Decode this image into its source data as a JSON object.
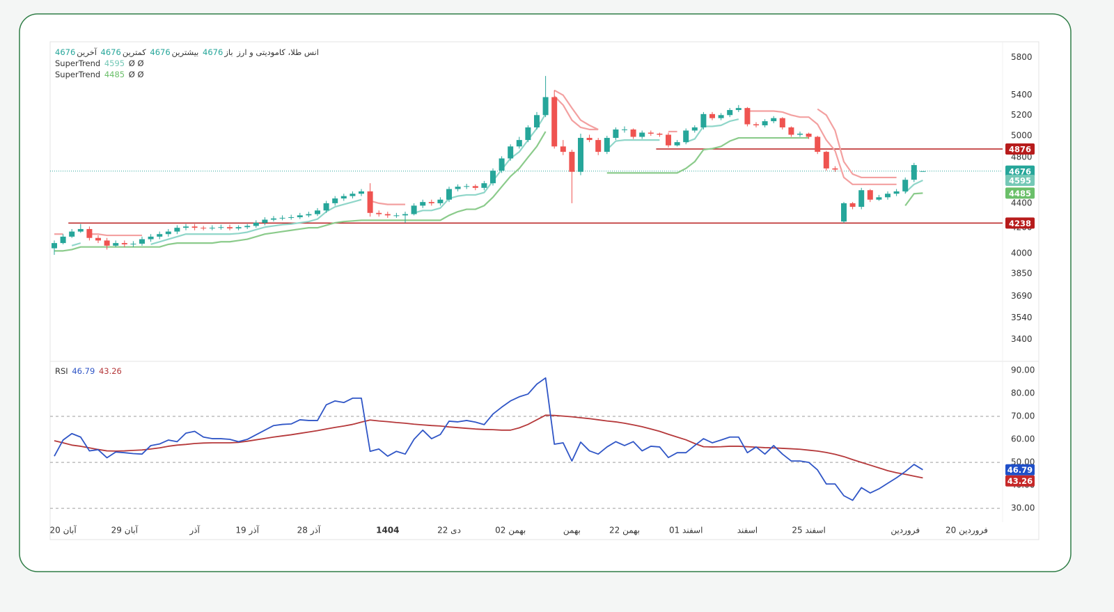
{
  "chart_data": [
    {
      "type": "candlestick",
      "title": "انس طلا، کامودیتی و ارز",
      "legend_labels": {
        "open": "باز",
        "high": "بیشترین",
        "low": "کمترین",
        "close": "آخرین"
      },
      "categories": [
        null,
        "20 آبان",
        null,
        null,
        null,
        null,
        null,
        null,
        "29 آبان",
        null,
        null,
        null,
        null,
        null,
        null,
        null,
        "آذر",
        null,
        null,
        null,
        null,
        null,
        "19 آذر",
        null,
        null,
        null,
        null,
        null,
        null,
        "28 آذر",
        null,
        null,
        null,
        null,
        null,
        null,
        null,
        null,
        "1404",
        null,
        null,
        null,
        null,
        null,
        null,
        "22 دی",
        null,
        null,
        null,
        null,
        null,
        null,
        "02 بهمن",
        null,
        null,
        null,
        null,
        null,
        null,
        "بهمن",
        null,
        null,
        null,
        null,
        null,
        "22 بهمن",
        null,
        null,
        null,
        null,
        null,
        null,
        "01 اسفند",
        null,
        null,
        null,
        null,
        null,
        null,
        "اسفند",
        null,
        null,
        null,
        null,
        null,
        null,
        "25 اسفند",
        null,
        null,
        null,
        null,
        null,
        null,
        null,
        null,
        null,
        null,
        "فروردین",
        null,
        null,
        null,
        null,
        null,
        null,
        "20 فروردین"
      ],
      "bold_category": 38,
      "open": [
        4040,
        4080,
        4130,
        4170,
        4190,
        4120,
        4100,
        4060,
        4080,
        4070,
        4075,
        4110,
        4130,
        4150,
        4170,
        4200,
        4210,
        4200,
        4195,
        4200,
        4205,
        4195,
        4205,
        4215,
        4240,
        4265,
        4275,
        4280,
        4285,
        4300,
        4310,
        4340,
        4400,
        4440,
        4460,
        4480,
        4500,
        4320,
        4310,
        4300,
        4300,
        4310,
        4380,
        4410,
        4400,
        4430,
        4520,
        4540,
        4545,
        4530,
        4570,
        4680,
        4790,
        4900,
        4960,
        5080,
        5200,
        5380,
        4900,
        4850,
        4670,
        4980,
        4960,
        4850,
        4980,
        5060,
        5060,
        4990,
        5030,
        5020,
        5010,
        4910,
        4940,
        5050,
        5080,
        5210,
        5170,
        5200,
        5250,
        5270,
        5110,
        5100,
        5140,
        5170,
        5080,
        5010,
        5020,
        4990,
        4850,
        4700,
        4250,
        4400,
        4370,
        4510,
        4430,
        4450,
        4480,
        4500,
        4600,
        4676,
        null,
        null,
        null,
        null,
        null
      ],
      "high": [
        4100,
        4150,
        4190,
        4230,
        4210,
        4140,
        4120,
        4100,
        4100,
        4095,
        4130,
        4150,
        4170,
        4190,
        4220,
        4230,
        4230,
        4215,
        4220,
        4225,
        4225,
        4220,
        4230,
        4260,
        4285,
        4295,
        4300,
        4305,
        4320,
        4330,
        4360,
        4420,
        4460,
        4480,
        4500,
        4520,
        4570,
        4340,
        4330,
        4320,
        4330,
        4400,
        4430,
        4430,
        4450,
        4540,
        4560,
        4565,
        4560,
        4590,
        4700,
        4810,
        4920,
        4990,
        5100,
        5230,
        5600,
        5450,
        4960,
        4870,
        5020,
        5010,
        4980,
        5000,
        5080,
        5090,
        5070,
        5050,
        5050,
        5030,
        5030,
        4960,
        5070,
        5100,
        5230,
        5230,
        5220,
        5270,
        5300,
        5280,
        5130,
        5160,
        5190,
        5180,
        5090,
        5040,
        5030,
        5000,
        4860,
        4720,
        4410,
        4410,
        4530,
        4520,
        4470,
        4500,
        4520,
        4620,
        4750,
        4676,
        null,
        null,
        null,
        null,
        null
      ],
      "low": [
        3990,
        4070,
        4120,
        4160,
        4100,
        4080,
        4030,
        4050,
        4050,
        4050,
        4060,
        4090,
        4110,
        4130,
        4150,
        4180,
        4180,
        4180,
        4180,
        4185,
        4180,
        4180,
        4190,
        4200,
        4220,
        4250,
        4260,
        4265,
        4270,
        4285,
        4295,
        4320,
        4380,
        4420,
        4440,
        4460,
        4290,
        4290,
        4280,
        4280,
        4240,
        4300,
        4360,
        4380,
        4380,
        4410,
        4500,
        4520,
        4510,
        4510,
        4550,
        4660,
        4770,
        4880,
        4940,
        5060,
        5180,
        4880,
        4820,
        4400,
        4640,
        4940,
        4820,
        4830,
        4960,
        5030,
        4970,
        4970,
        5000,
        4990,
        4890,
        4900,
        4920,
        5030,
        5060,
        5150,
        5150,
        5180,
        5230,
        5090,
        5080,
        5080,
        5120,
        5060,
        4990,
        4990,
        4970,
        4830,
        4680,
        4670,
        4238,
        4350,
        4350,
        4410,
        4420,
        4430,
        4460,
        4480,
        4580,
        4676,
        null,
        null,
        null,
        null,
        null
      ],
      "close": [
        4080,
        4130,
        4170,
        4190,
        4120,
        4100,
        4060,
        4080,
        4070,
        4075,
        4110,
        4130,
        4150,
        4170,
        4200,
        4210,
        4200,
        4195,
        4200,
        4205,
        4195,
        4205,
        4215,
        4240,
        4265,
        4275,
        4280,
        4285,
        4300,
        4310,
        4340,
        4400,
        4440,
        4460,
        4480,
        4500,
        4320,
        4310,
        4300,
        4300,
        4310,
        4380,
        4410,
        4400,
        4430,
        4520,
        4540,
        4545,
        4530,
        4570,
        4680,
        4790,
        4900,
        4960,
        5080,
        5200,
        5380,
        4900,
        4850,
        4670,
        4980,
        4960,
        4850,
        4980,
        5060,
        5060,
        4990,
        5030,
        5020,
        5010,
        4910,
        4940,
        5050,
        5080,
        5210,
        5170,
        5200,
        5250,
        5270,
        5110,
        5100,
        5140,
        5170,
        5080,
        5010,
        5020,
        4990,
        4850,
        4700,
        4690,
        4400,
        4370,
        4510,
        4430,
        4450,
        4480,
        4500,
        4600,
        4730,
        4676,
        null,
        null,
        null,
        null,
        null
      ],
      "up_color": "#26a69a",
      "down_color": "#ef5350",
      "ylim": [
        3265,
        5975
      ],
      "log_scale": true,
      "grid": false,
      "yticks": [
        3400,
        3540,
        3690,
        3850,
        4000,
        4200,
        4400,
        4800,
        5000,
        5200,
        5400,
        5800
      ],
      "overlays": [
        {
          "name": "SuperTrend",
          "extra": "Ø Ø",
          "color": "#8fd6c9",
          "label_color": "#74c8b6",
          "down_color": "#f3a0a0",
          "values": [
            4150,
            4150,
            4060,
            4080,
            4150,
            4150,
            4140,
            4140,
            4140,
            4140,
            4140,
            4070,
            4090,
            4110,
            4130,
            4150,
            4150,
            4150,
            4150,
            4150,
            4150,
            4155,
            4165,
            4185,
            4205,
            4215,
            4225,
            4230,
            4240,
            4250,
            4270,
            4330,
            4370,
            4390,
            4410,
            4430,
            4420,
            4400,
            4390,
            4390,
            4390,
            4320,
            4340,
            4340,
            4360,
            4440,
            4460,
            4470,
            4470,
            4490,
            4590,
            4690,
            4790,
            4850,
            4960,
            5070,
            5210,
            5390,
            5300,
            5150,
            5080,
            5060,
            5060,
            4870,
            4950,
            4960,
            4960,
            4960,
            4960,
            4960,
            5040,
            5040,
            4940,
            4970,
            5090,
            5090,
            5100,
            5140,
            5160,
            5240,
            5240,
            5240,
            5240,
            5230,
            5200,
            5180,
            5180,
            5110,
            4960,
            4860,
            4620,
            4560,
            4560,
            4560,
            4560,
            4560,
            4560,
            4490,
            4560,
            4595,
            null,
            null,
            null,
            null,
            null
          ]
        },
        {
          "name": "SuperTrend",
          "extra": "Ø Ø",
          "color": "#8bcb8b",
          "label_color": "#6abf69",
          "down_color": "#f3a0a0",
          "values": [
            4020,
            4020,
            4030,
            4050,
            4050,
            4050,
            4050,
            4050,
            4050,
            4050,
            4050,
            4050,
            4050,
            4070,
            4080,
            4080,
            4080,
            4080,
            4080,
            4090,
            4090,
            4100,
            4110,
            4130,
            4150,
            4160,
            4170,
            4180,
            4190,
            4200,
            4200,
            4220,
            4240,
            4250,
            4255,
            4260,
            4260,
            4260,
            4260,
            4260,
            4260,
            4260,
            4260,
            4260,
            4260,
            4300,
            4330,
            4350,
            4350,
            4380,
            4450,
            4540,
            4630,
            4700,
            4800,
            4900,
            5040,
            5450,
            5400,
            5270,
            5150,
            5100,
            5060,
            4660,
            4660,
            4660,
            4660,
            4660,
            4660,
            4660,
            4660,
            4660,
            4700,
            4760,
            4870,
            4880,
            4900,
            4950,
            4980,
            4980,
            4980,
            4980,
            4980,
            4980,
            4980,
            4980,
            4980,
            5260,
            5200,
            5050,
            4760,
            4650,
            4620,
            4620,
            4620,
            4620,
            4620,
            4380,
            4480,
            4485,
            null,
            null,
            null,
            null,
            null
          ]
        }
      ],
      "levels": [
        {
          "value": 4876,
          "color": "#b71c1c",
          "start": 69
        },
        {
          "value": 4238,
          "color": "#b71c1c",
          "start": 2
        }
      ],
      "last_price_line": true
    },
    {
      "type": "line",
      "title": "RSI",
      "series": [
        {
          "color": "#2f55c6",
          "label_color": "#1f4fc8",
          "values": [
            52.7,
            59.7,
            62.5,
            61,
            55,
            55.5,
            52,
            54.5,
            54.2,
            53.8,
            53.6,
            57.3,
            58,
            59.7,
            59,
            62.7,
            63.5,
            61,
            60.3,
            60.3,
            60,
            59,
            60,
            62,
            64,
            66,
            66.5,
            66.7,
            68.5,
            68.2,
            68.2,
            75,
            76.7,
            76,
            77.9,
            77.9,
            54.8,
            55.8,
            52.7,
            54.8,
            53.6,
            60,
            64,
            60.3,
            62.1,
            67.9,
            67.6,
            68.2,
            67.5,
            66.4,
            71,
            74,
            76.7,
            78.5,
            79.7,
            84,
            86.7,
            57.9,
            58.5,
            50.6,
            58.8,
            55,
            53.6,
            56.7,
            59,
            57.3,
            59,
            55,
            57,
            56.7,
            52.1,
            54.2,
            54.2,
            57.3,
            60.3,
            58.5,
            59.7,
            61,
            61,
            54.2,
            56.7,
            53.6,
            57.3,
            53.6,
            50.6,
            50.6,
            50,
            46.7,
            40.6,
            40.6,
            35.5,
            33.5,
            39,
            36.7,
            38.5,
            40.9,
            43.3,
            46,
            49.1,
            46.79
          ]
        },
        {
          "color": "#b5383a",
          "label_color": "#c62828",
          "values": [
            59.4,
            58.5,
            57.5,
            57,
            56.3,
            55.6,
            55,
            54.9,
            55,
            55.2,
            55.4,
            55.8,
            56.3,
            57,
            57.5,
            57.8,
            58.2,
            58.4,
            58.5,
            58.5,
            58.5,
            58.7,
            59.2,
            59.8,
            60.4,
            61,
            61.5,
            62,
            62.6,
            63.2,
            63.8,
            64.5,
            65.2,
            65.8,
            66.5,
            67.5,
            68.4,
            68,
            67.7,
            67.3,
            67,
            66.6,
            66.3,
            66,
            65.8,
            65.4,
            65.1,
            64.8,
            64.5,
            64.3,
            64.2,
            64,
            64,
            65,
            66.5,
            68.5,
            70.5,
            70.4,
            70.1,
            69.8,
            69.4,
            69,
            68.5,
            68,
            67.6,
            67,
            66.3,
            65.5,
            64.5,
            63.5,
            62.2,
            61,
            59.8,
            58.2,
            56.8,
            56.7,
            56.8,
            57,
            57,
            56.8,
            56.6,
            56.4,
            56.3,
            56.1,
            55.9,
            55.7,
            55.3,
            54.9,
            54.3,
            53.5,
            52.5,
            51.2,
            50,
            48.8,
            47.6,
            46.4,
            45.5,
            44.8,
            44,
            43.26
          ]
        }
      ],
      "ylim": [
        24,
        93.6
      ],
      "yticks": [
        {
          "value": 30,
          "label": "30.00"
        },
        {
          "value": 40,
          "label": "40.00"
        },
        {
          "value": 50,
          "label": "50.00"
        },
        {
          "value": 60,
          "label": "60.00"
        },
        {
          "value": 70,
          "label": "70.00"
        },
        {
          "value": 80,
          "label": "80.00"
        },
        {
          "value": 90,
          "label": "90.00"
        }
      ],
      "reference_lines": [
        70,
        50,
        30
      ]
    }
  ]
}
